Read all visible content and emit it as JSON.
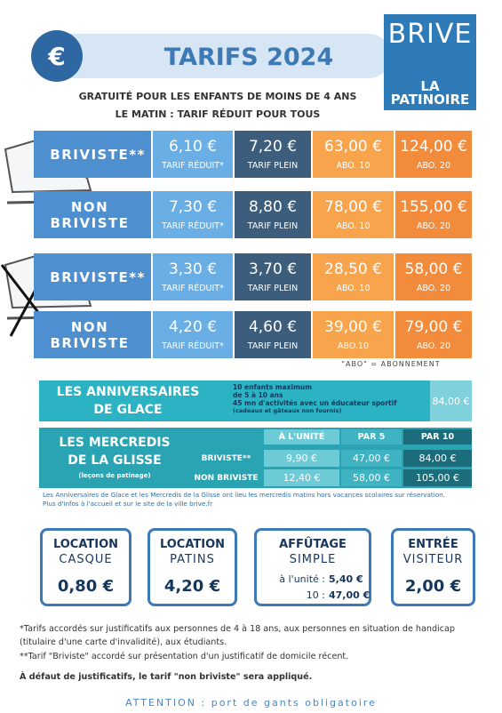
{
  "header": {
    "icon": "€",
    "title": "TARIFS 2024",
    "logo": {
      "top": "BRIVE",
      "bottom": "LA PATINOIRE"
    }
  },
  "bullets": [
    "GRATUITÉ POUR LES ENFANTS DE MOINS DE 4 ANS",
    "LE MATIN : TARIF RÉDUIT POUR TOUS"
  ],
  "price_table": {
    "rows": [
      {
        "label": "BRIVISTE**",
        "cells": [
          {
            "price": "6,10 €",
            "label": "TARIF RÉDUIT*"
          },
          {
            "price": "7,20 €",
            "label": "TARIF PLEIN"
          },
          {
            "price": "63,00 €",
            "label": "ABO. 10"
          },
          {
            "price": "124,00 €",
            "label": "ABO. 20"
          }
        ]
      },
      {
        "label": "NON BRIVISTE",
        "cells": [
          {
            "price": "7,30 €",
            "label": "TARIF RÉDUIT*"
          },
          {
            "price": "8,80 €",
            "label": "TARIF PLEIN"
          },
          {
            "price": "78,00 €",
            "label": "ABO. 10"
          },
          {
            "price": "155,00 €",
            "label": "ABO. 20"
          }
        ]
      },
      {
        "label": "BRIVISTE**",
        "cells": [
          {
            "price": "3,30 €",
            "label": "TARIF RÉDUIT*"
          },
          {
            "price": "3,70 €",
            "label": "TARIF PLEIN"
          },
          {
            "price": "28,50 €",
            "label": "ABO. 10"
          },
          {
            "price": "58,00 €",
            "label": "ABO. 20"
          }
        ]
      },
      {
        "label": "NON BRIVISTE",
        "cells": [
          {
            "price": "4,20 €",
            "label": "TARIF RÉDUIT*"
          },
          {
            "price": "4,60 €",
            "label": "TARIF PLEIN"
          },
          {
            "price": "39,00 €",
            "label": "ABO.10"
          },
          {
            "price": "79,00 €",
            "label": "ABO. 20"
          }
        ]
      }
    ],
    "note": "\"ABO\" = ABONNEMENT"
  },
  "anniversaires": {
    "title": [
      "LES ANNIVERSAIRES",
      "DE GLACE"
    ],
    "details": [
      "10 enfants maximum",
      "de 5 à 10 ans",
      "45 mn d'activités avec un éducateur sportif"
    ],
    "detail_note": "(cadeaux et gâteaux non fournis)",
    "price": "84,00 €"
  },
  "mercredis": {
    "title": [
      "LES MERCREDIS",
      "DE LA GLISSE"
    ],
    "subtitle": "(leçons de patinage)",
    "columns": [
      "À L'UNITÉ",
      "PAR 5",
      "PAR 10"
    ],
    "rows": [
      {
        "label": "BRIVISTE**",
        "prices": [
          "9,90 €",
          "47,00 €",
          "84,00 €"
        ]
      },
      {
        "label": "NON BRIVISTE",
        "prices": [
          "12,40 €",
          "58,00 €",
          "105,00 €"
        ]
      }
    ]
  },
  "info": [
    "Les Anniversaires de Glace et les Mercredis de la Glisse ont lieu les mercredis matins hors vacances scolaires sur réservation.",
    "Plus d'infos à l'accueil et sur le site de la ville brive.fr"
  ],
  "services": [
    {
      "title": "LOCATION",
      "subtitle": "CASQUE",
      "price": "0,80 €"
    },
    {
      "title": "LOCATION",
      "subtitle": "PATINS",
      "price": "4,20 €"
    },
    {
      "title": "AFFÛTAGE",
      "subtitle": "SIMPLE",
      "options": [
        {
          "label": "à l'unité :",
          "price": "5,40 €"
        },
        {
          "label": "10 :",
          "price": "47,00 €"
        }
      ]
    },
    {
      "title": "ENTRÉE",
      "subtitle": "VISITEUR",
      "price": "2,00 €"
    }
  ],
  "footnotes": [
    "*Tarifs accordés sur justificatifs aux personnes de 4 à 18 ans, aux personnes en situation de handicap (titulaire d'une carte d'invalidité), aux étudiants.",
    "**Tarif \"Briviste\" accordé sur présentation d'un justificatif de domicile récent.",
    "À défaut de justificatifs, le tarif \"non briviste\" sera appliqué."
  ],
  "attention": "ATTENTION : port de gants obligatoire"
}
